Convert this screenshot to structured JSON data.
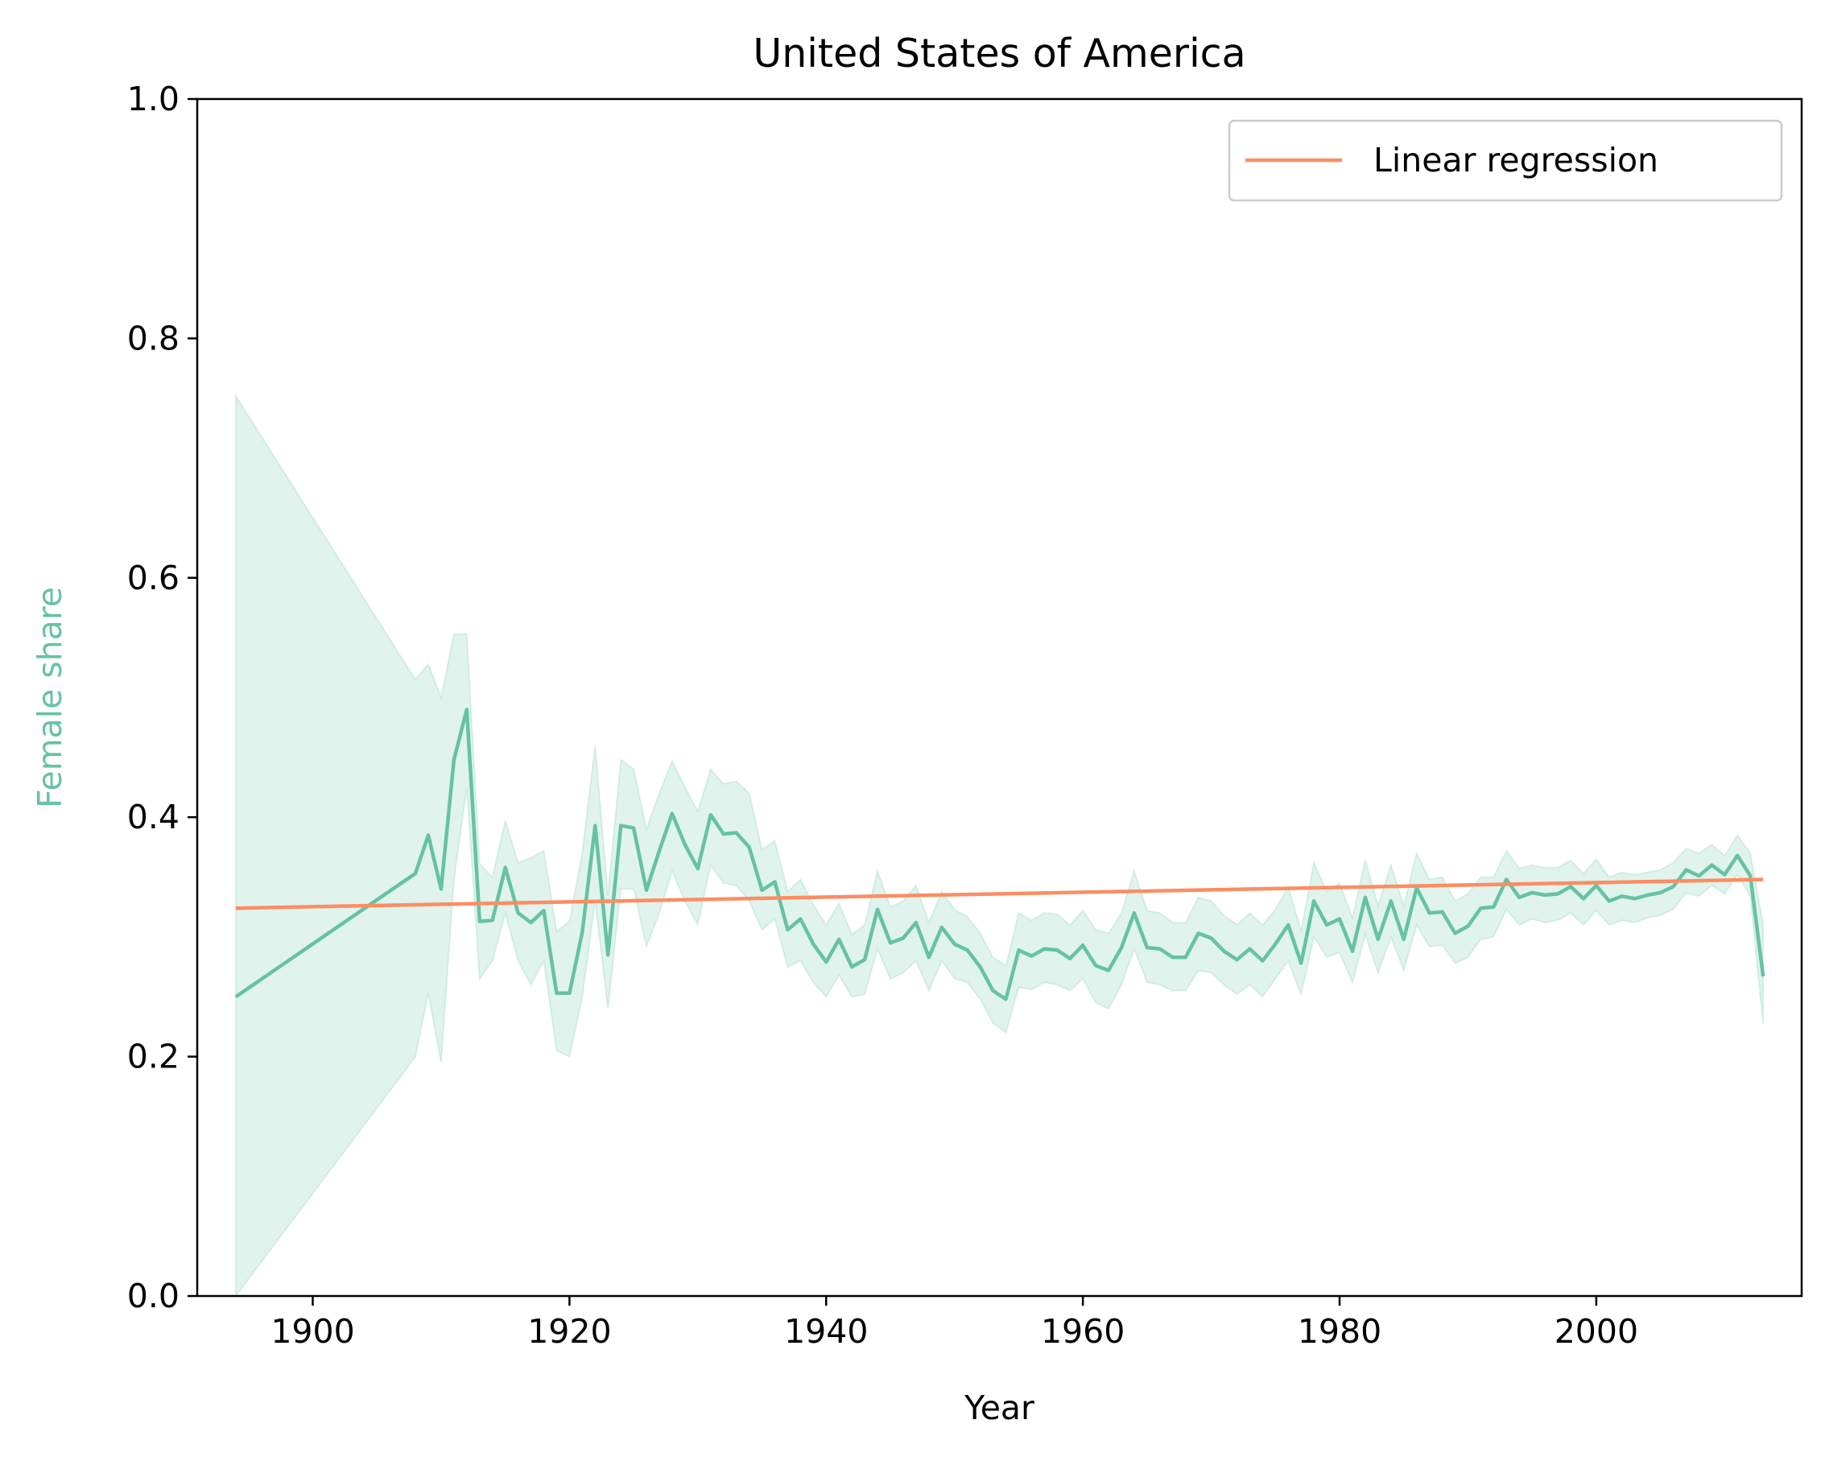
{
  "chart_data": {
    "type": "line",
    "title": "United States of America",
    "xlabel": "Year",
    "ylabel": "Female share",
    "ylabel_color": "#66c2a5",
    "xlim": [
      1891,
      2016
    ],
    "ylim": [
      0,
      1
    ],
    "xticks": [
      "1900",
      "1920",
      "1940",
      "1960",
      "1980",
      "2000"
    ],
    "yticks": [
      "0.0",
      "0.2",
      "0.4",
      "0.6",
      "0.8",
      "1.0"
    ],
    "grid": false,
    "legend": {
      "position": "top-right",
      "entries": [
        "Linear regression"
      ]
    },
    "series": [
      {
        "color": "#66c2a5",
        "x": [
          1894,
          1908,
          1909,
          1910,
          1911,
          1912,
          1913,
          1914,
          1915,
          1916,
          1917,
          1918,
          1919,
          1920,
          1921,
          1922,
          1923,
          1924,
          1925,
          1926,
          1927,
          1928,
          1929,
          1930,
          1931,
          1932,
          1933,
          1934,
          1935,
          1936,
          1937,
          1938,
          1939,
          1940,
          1941,
          1942,
          1943,
          1944,
          1945,
          1946,
          1947,
          1948,
          1949,
          1950,
          1951,
          1952,
          1953,
          1954,
          1955,
          1956,
          1957,
          1958,
          1959,
          1960,
          1961,
          1962,
          1963,
          1964,
          1965,
          1966,
          1967,
          1968,
          1969,
          1970,
          1971,
          1972,
          1973,
          1974,
          1975,
          1976,
          1977,
          1978,
          1979,
          1980,
          1981,
          1982,
          1983,
          1984,
          1985,
          1986,
          1987,
          1988,
          1989,
          1990,
          1991,
          1992,
          1993,
          1994,
          1995,
          1996,
          1997,
          1998,
          1999,
          2000,
          2001,
          2002,
          2003,
          2004,
          2005,
          2006,
          2007,
          2008,
          2009,
          2010,
          2011,
          2012,
          2013
        ],
        "values": [
          0.25,
          0.353,
          0.385,
          0.34,
          0.448,
          0.49,
          0.313,
          0.314,
          0.358,
          0.32,
          0.312,
          0.322,
          0.253,
          0.253,
          0.304,
          0.393,
          0.285,
          0.393,
          0.391,
          0.339,
          0.372,
          0.403,
          0.377,
          0.357,
          0.402,
          0.386,
          0.387,
          0.375,
          0.339,
          0.346,
          0.306,
          0.315,
          0.294,
          0.279,
          0.298,
          0.275,
          0.281,
          0.323,
          0.295,
          0.299,
          0.312,
          0.283,
          0.308,
          0.294,
          0.289,
          0.275,
          0.255,
          0.248,
          0.289,
          0.284,
          0.29,
          0.289,
          0.282,
          0.293,
          0.276,
          0.272,
          0.291,
          0.32,
          0.291,
          0.29,
          0.283,
          0.283,
          0.303,
          0.299,
          0.288,
          0.281,
          0.29,
          0.28,
          0.294,
          0.31,
          0.278,
          0.33,
          0.31,
          0.315,
          0.288,
          0.333,
          0.298,
          0.33,
          0.298,
          0.341,
          0.32,
          0.321,
          0.303,
          0.309,
          0.324,
          0.325,
          0.348,
          0.333,
          0.337,
          0.335,
          0.336,
          0.342,
          0.332,
          0.343,
          0.33,
          0.334,
          0.332,
          0.335,
          0.337,
          0.342,
          0.356,
          0.351,
          0.36,
          0.352,
          0.368,
          0.351,
          0.267
        ],
        "lower": [
          0.0,
          0.2,
          0.253,
          0.195,
          0.348,
          0.425,
          0.265,
          0.28,
          0.32,
          0.28,
          0.26,
          0.28,
          0.205,
          0.2,
          0.25,
          0.33,
          0.24,
          0.34,
          0.34,
          0.292,
          0.32,
          0.355,
          0.33,
          0.31,
          0.36,
          0.345,
          0.343,
          0.33,
          0.306,
          0.315,
          0.275,
          0.28,
          0.262,
          0.25,
          0.268,
          0.25,
          0.252,
          0.29,
          0.265,
          0.27,
          0.28,
          0.255,
          0.28,
          0.265,
          0.262,
          0.248,
          0.228,
          0.22,
          0.258,
          0.256,
          0.262,
          0.26,
          0.255,
          0.265,
          0.245,
          0.24,
          0.26,
          0.29,
          0.262,
          0.26,
          0.255,
          0.255,
          0.272,
          0.27,
          0.26,
          0.252,
          0.26,
          0.25,
          0.265,
          0.28,
          0.252,
          0.3,
          0.283,
          0.287,
          0.262,
          0.302,
          0.27,
          0.3,
          0.272,
          0.31,
          0.292,
          0.293,
          0.278,
          0.283,
          0.298,
          0.3,
          0.323,
          0.31,
          0.315,
          0.312,
          0.314,
          0.32,
          0.31,
          0.322,
          0.31,
          0.314,
          0.312,
          0.316,
          0.318,
          0.323,
          0.337,
          0.334,
          0.343,
          0.336,
          0.352,
          0.334,
          0.227
        ],
        "upper": [
          0.752,
          0.515,
          0.528,
          0.5,
          0.553,
          0.553,
          0.361,
          0.35,
          0.397,
          0.362,
          0.366,
          0.372,
          0.305,
          0.313,
          0.37,
          0.46,
          0.335,
          0.448,
          0.44,
          0.39,
          0.42,
          0.447,
          0.425,
          0.405,
          0.44,
          0.428,
          0.43,
          0.42,
          0.373,
          0.38,
          0.338,
          0.348,
          0.327,
          0.31,
          0.328,
          0.302,
          0.31,
          0.355,
          0.325,
          0.33,
          0.343,
          0.312,
          0.338,
          0.323,
          0.317,
          0.303,
          0.283,
          0.276,
          0.32,
          0.314,
          0.32,
          0.319,
          0.31,
          0.322,
          0.306,
          0.303,
          0.32,
          0.355,
          0.322,
          0.32,
          0.312,
          0.312,
          0.333,
          0.33,
          0.318,
          0.31,
          0.32,
          0.31,
          0.323,
          0.342,
          0.305,
          0.362,
          0.338,
          0.345,
          0.316,
          0.364,
          0.326,
          0.36,
          0.326,
          0.37,
          0.348,
          0.35,
          0.33,
          0.336,
          0.35,
          0.35,
          0.372,
          0.357,
          0.36,
          0.358,
          0.358,
          0.364,
          0.353,
          0.365,
          0.35,
          0.354,
          0.352,
          0.354,
          0.356,
          0.362,
          0.374,
          0.37,
          0.377,
          0.368,
          0.385,
          0.37,
          0.31
        ]
      },
      {
        "name": "Linear regression",
        "color": "#fc8d62",
        "x": [
          1894,
          2013
        ],
        "values": [
          0.324,
          0.348
        ]
      }
    ]
  }
}
